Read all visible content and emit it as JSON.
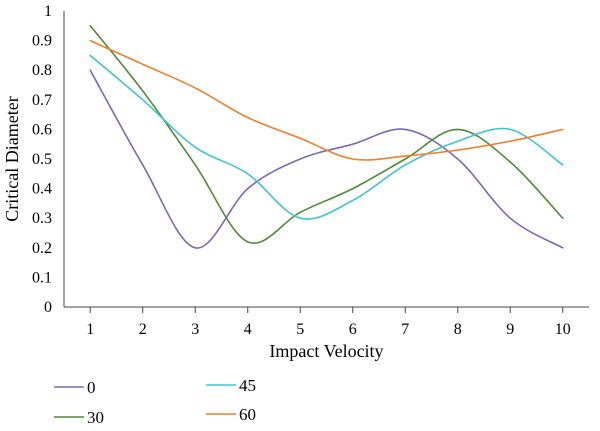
{
  "chart_data": {
    "type": "line",
    "xlabel": "Impact Velocity",
    "ylabel": "Critical Diameter",
    "x": [
      1,
      2,
      3,
      4,
      5,
      6,
      7,
      8,
      9,
      10
    ],
    "x_tick_labels": [
      "1",
      "2",
      "3",
      "4",
      "5",
      "6",
      "7",
      "8",
      "9",
      "10"
    ],
    "y_tick_labels": [
      "0",
      "0.1",
      "0.2",
      "0.3",
      "0.4",
      "0.5",
      "0.6",
      "0.7",
      "0.8",
      "0.9",
      "1"
    ],
    "y_ticks": [
      0,
      0.1,
      0.2,
      0.3,
      0.4,
      0.5,
      0.6,
      0.7,
      0.8,
      0.9,
      1
    ],
    "ylim": [
      0,
      1
    ],
    "xlim": [
      0.5,
      10.5
    ],
    "grid": false,
    "smooth": true,
    "legend_position": "bottom-left",
    "series": [
      {
        "name": "0",
        "color": "#7B68B5",
        "values": [
          0.8,
          0.48,
          0.2,
          0.4,
          0.5,
          0.55,
          0.6,
          0.5,
          0.3,
          0.2
        ]
      },
      {
        "name": "30",
        "color": "#4E8A34",
        "values": [
          0.95,
          0.73,
          0.48,
          0.22,
          0.32,
          0.4,
          0.5,
          0.6,
          0.49,
          0.3
        ]
      },
      {
        "name": "45",
        "color": "#3CC4D0",
        "values": [
          0.85,
          0.7,
          0.54,
          0.45,
          0.3,
          0.36,
          0.48,
          0.56,
          0.6,
          0.48
        ]
      },
      {
        "name": "60",
        "color": "#F07E2A",
        "values": [
          0.9,
          0.82,
          0.74,
          0.64,
          0.57,
          0.5,
          0.51,
          0.53,
          0.56,
          0.6
        ]
      }
    ]
  }
}
